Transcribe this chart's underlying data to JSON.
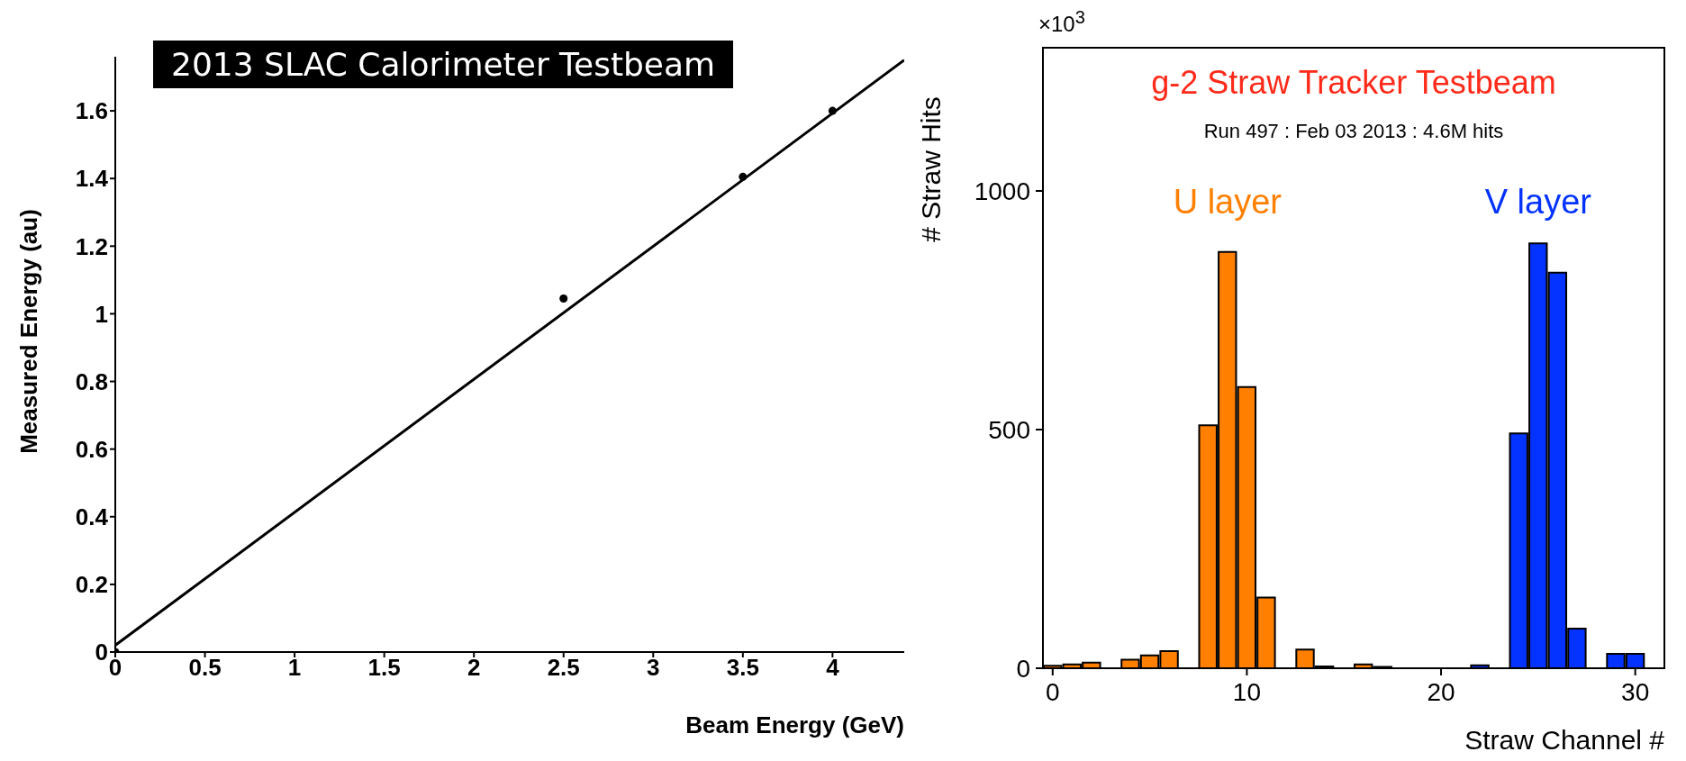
{
  "chart_data": [
    {
      "type": "scatter",
      "title": "2013 SLAC Calorimeter Testbeam",
      "xlabel": "Beam Energy (GeV)",
      "ylabel": "Measured Energy (au)",
      "series": [
        {
          "type": "scatter",
          "color": "#000000",
          "marker": "circle",
          "x": [
            0,
            2.5,
            3.5,
            4
          ],
          "values": [
            0,
            1.045,
            1.405,
            1.6
          ]
        },
        {
          "type": "line",
          "color": "#000000",
          "x": [
            0,
            4.4
          ],
          "values": [
            0.02,
            1.75
          ]
        }
      ],
      "xlim": [
        0,
        4.4
      ],
      "ylim": [
        0,
        1.76
      ],
      "xticks": [
        0,
        0.5,
        1,
        1.5,
        2,
        2.5,
        3,
        3.5,
        4
      ],
      "yticks": [
        0,
        0.2,
        0.4,
        0.6,
        0.8,
        1,
        1.2,
        1.4,
        1.6
      ],
      "grid": false,
      "legend": false
    },
    {
      "type": "histogram",
      "title": "g-2 Straw Tracker Testbeam",
      "subtitle": "Run 497 : Feb 03 2013 : 4.6M hits",
      "xlabel": "Straw Channel #",
      "ylabel": "# Straw Hits",
      "annotations": [
        "×10$^{3}$"
      ],
      "bins": [
        -0.5,
        0.5,
        1.5,
        2.5,
        3.5,
        4.5,
        5.5,
        6.5,
        7.5,
        8.5,
        9.5,
        10.5,
        11.5,
        12.5,
        13.5,
        14.5,
        15.5,
        16.5,
        17.5,
        18.5,
        19.5,
        20.5,
        21.5,
        22.5,
        23.5,
        24.5,
        25.5,
        26.5,
        27.5,
        28.5,
        29.5,
        30.5,
        31.5
      ],
      "series": [
        {
          "name": "U layer",
          "color": "#ff7f00",
          "values": [
            5,
            8,
            12,
            0,
            18,
            27,
            36,
            0,
            509,
            872,
            589,
            148,
            0,
            39,
            4,
            0,
            8,
            3,
            0,
            0,
            0,
            null,
            null,
            null,
            null,
            null,
            null,
            null,
            null,
            null,
            null,
            null
          ]
        },
        {
          "name": "V layer",
          "color": "#0433ff",
          "values": [
            null,
            null,
            null,
            null,
            null,
            null,
            null,
            null,
            null,
            null,
            null,
            null,
            null,
            null,
            null,
            null,
            null,
            null,
            null,
            null,
            null,
            0,
            6,
            0,
            492,
            890,
            829,
            83,
            0,
            30,
            30,
            0
          ]
        }
      ],
      "xlim": [
        -0.5,
        31.5
      ],
      "ylim": [
        0,
        1300
      ],
      "xticks": [
        0,
        10,
        20,
        30
      ],
      "yticks": [
        0,
        500,
        1000
      ],
      "grid": false,
      "legend": false
    }
  ]
}
